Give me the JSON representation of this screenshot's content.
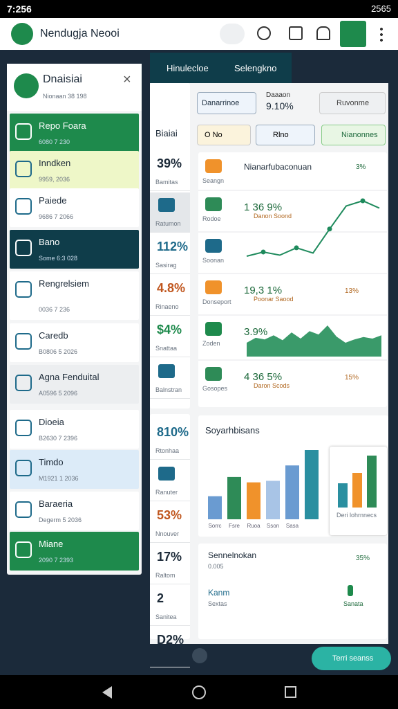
{
  "status": {
    "time": "7:256",
    "battery": "2565"
  },
  "appbar": {
    "title": "Nendugja Neooi"
  },
  "sidebar": {
    "header": {
      "title": "Dnaisiai",
      "subtitle": "Nionaan 38 198"
    },
    "items": [
      {
        "title": "Repo Foara",
        "sub": "6080 7 230"
      },
      {
        "title": "Inndken",
        "sub": "9959, 2036"
      },
      {
        "title": "Paiede",
        "sub": "9686 7 2066"
      },
      {
        "title": "Bano",
        "sub": "Some 6:3 028"
      },
      {
        "title": "Rengrelsiem",
        "sub": "0036 7 236"
      },
      {
        "title": "Caredb",
        "sub": "B0806 5 2026"
      },
      {
        "title": "Agna Fenduital",
        "sub": "A0596 5 2096"
      },
      {
        "title": "Dioeia",
        "sub": "B2630 7 2396"
      },
      {
        "title": "Timdo",
        "sub": "M1921 1 2036"
      },
      {
        "title": "Baraeria",
        "sub": "Degerm 5 2036"
      },
      {
        "title": "Miane",
        "sub": "2090 7 2393"
      }
    ]
  },
  "tabs": [
    "Hinulecloe",
    "Selengkno"
  ],
  "stats": {
    "heading": "Biaiai",
    "items": [
      {
        "value": "39%",
        "label": "Bamitas"
      },
      {
        "label": "Ratumon"
      },
      {
        "value": "112%",
        "label": "Sasirag"
      },
      {
        "value": "4.8%",
        "label": "Rinaeno"
      },
      {
        "value": "$4%",
        "label": "Snattaa"
      },
      {
        "label": "Balnstran"
      },
      {
        "value": "810%",
        "label": "Rtonhaa"
      },
      {
        "label": "Ranuter"
      },
      {
        "value": "53%",
        "label": "Nnouver"
      },
      {
        "value": "17%",
        "label": "Raltom"
      },
      {
        "value": "2",
        "label": "Sanitea"
      },
      {
        "value": "D2%"
      }
    ]
  },
  "filters": {
    "chip1": "Danarrinoe",
    "metric_label": "Daaaon",
    "metric": "9.10%",
    "chip2": "Ruvonme",
    "chip3": "O No",
    "chip4": "Rlno",
    "chip5": "Nianonnes"
  },
  "overview": {
    "title": "Nianarfubaconuan",
    "badge": "3%",
    "rows": [
      {
        "label": "Seangn"
      },
      {
        "label": "Rodoe",
        "value": "1 36 9%",
        "note": "Danon Soond"
      },
      {
        "label": "Soonan"
      },
      {
        "label": "Donseport",
        "value": "19,3 1%",
        "note": "Poonar Saood",
        "badge": "13%"
      },
      {
        "label": "Zoden",
        "value": "3.9%"
      },
      {
        "label": "Gosopes",
        "value": "4 36 5%",
        "note": "Daron Scods",
        "badge": "15%"
      }
    ],
    "line_values": [
      44,
      48,
      45,
      52,
      47,
      70,
      92,
      97,
      90
    ],
    "area_values": [
      30,
      42,
      38,
      48,
      36,
      55,
      40,
      58,
      50,
      72,
      45,
      30,
      38,
      44,
      40,
      48
    ]
  },
  "bar_card": {
    "title": "Soyarhbisans",
    "categories": [
      "Sorrc",
      "Fsre",
      "Ruoa",
      "Sson",
      "Sasa",
      null
    ],
    "series": [
      {
        "name": "Bars",
        "values": [
          30,
          55,
          48,
          50,
          70,
          90
        ]
      }
    ],
    "colors": [
      "#6a9bd1",
      "#2e8b57",
      "#f0922b",
      "#a8c4e6",
      "#6a9bd1",
      "#2a8fa0"
    ]
  },
  "mini_card": {
    "values": [
      35,
      50,
      75
    ],
    "colors": [
      "#2a8fa0",
      "#f0922b",
      "#2e8b57"
    ],
    "caption": "Deri lohrnnecs"
  },
  "bottom_card": {
    "title": "Sennelnokan",
    "sub": "0.005",
    "badge": "35%",
    "left_title": "Kanm",
    "left_sub": "Sextas",
    "right_sub": "Sanata"
  },
  "fab": "Terri seanss"
}
